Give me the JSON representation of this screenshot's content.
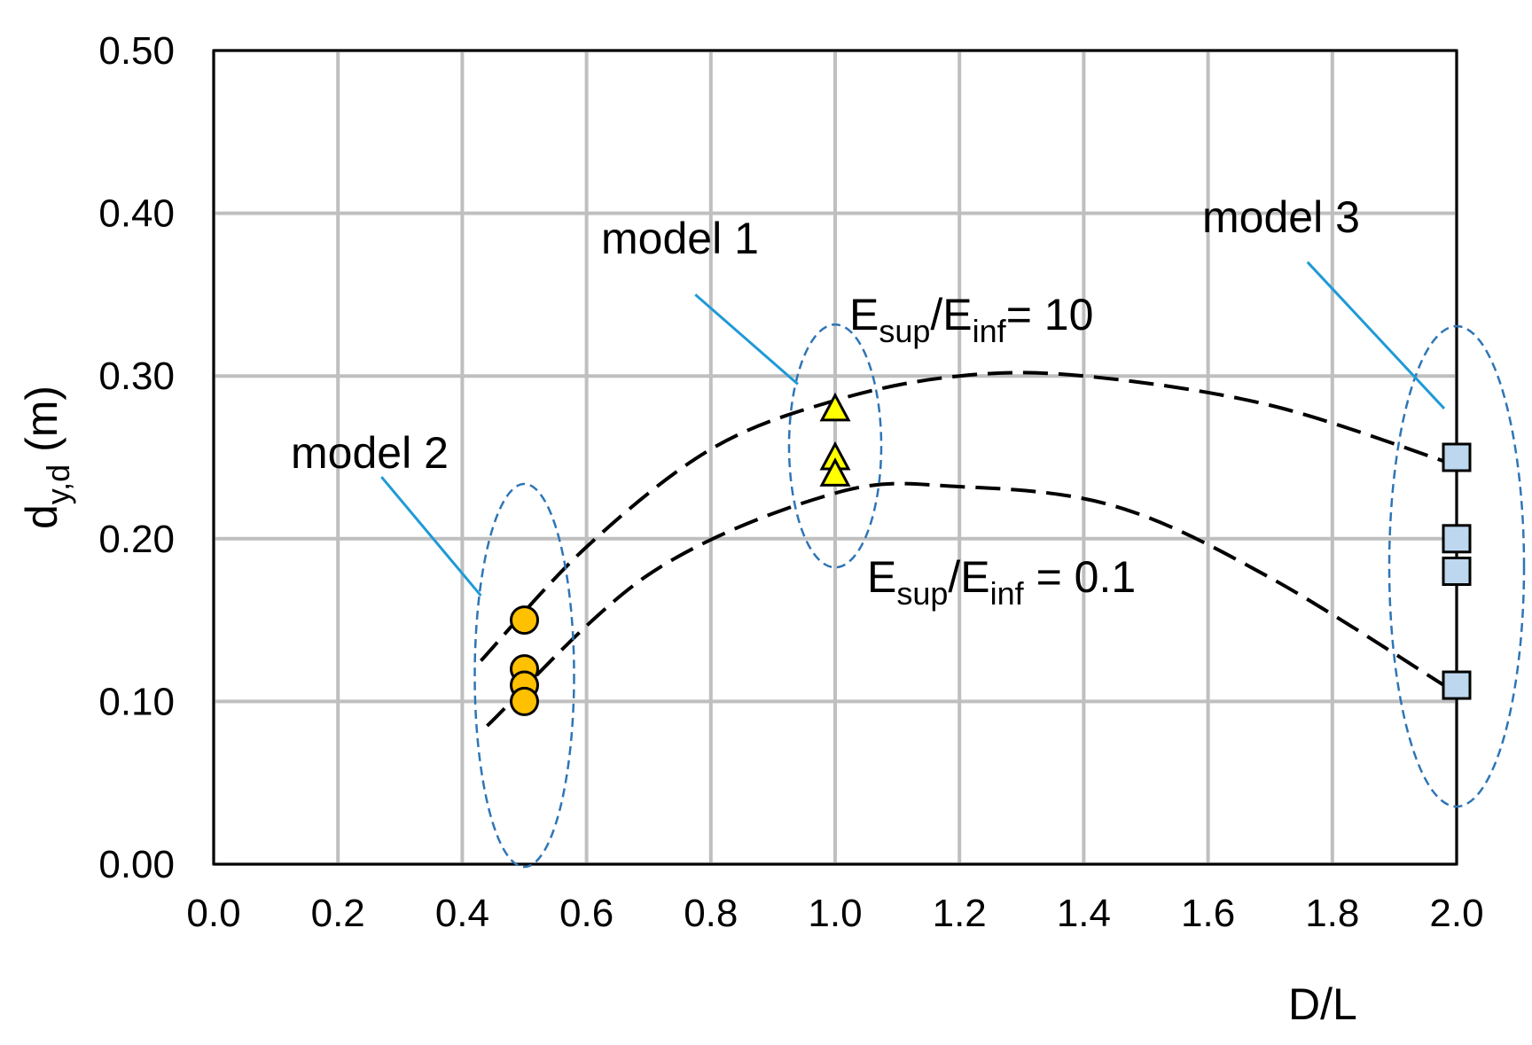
{
  "chart_data": {
    "type": "scatter",
    "xlabel": "D/L",
    "ylabel": {
      "main": "d",
      "sub": "y,d",
      "unit": " (m)"
    },
    "xlim": [
      0,
      2.0
    ],
    "ylim": [
      0,
      0.5
    ],
    "x_ticks": [
      "0.0",
      "0.2",
      "0.4",
      "0.6",
      "0.8",
      "1.0",
      "1.2",
      "1.4",
      "1.6",
      "1.8",
      "2.0"
    ],
    "y_ticks": [
      "0.00",
      "0.10",
      "0.20",
      "0.30",
      "0.40",
      "0.50"
    ],
    "grid": true,
    "colors": {
      "grid": "#bfbfbf",
      "model1": "#ffff00",
      "model2": "#ffc000",
      "model3": "#bdd7ee",
      "ellipse": "#2e75b6",
      "leader": "#1f9ad6",
      "trend": "#000000"
    },
    "series": [
      {
        "name": "model 1",
        "marker": "triangle",
        "points": [
          [
            1.0,
            0.28
          ],
          [
            1.0,
            0.25
          ],
          [
            1.0,
            0.24
          ]
        ]
      },
      {
        "name": "model 2",
        "marker": "circle",
        "points": [
          [
            0.5,
            0.15
          ],
          [
            0.5,
            0.12
          ],
          [
            0.5,
            0.11
          ],
          [
            0.5,
            0.1
          ]
        ]
      },
      {
        "name": "model 3",
        "marker": "square",
        "points": [
          [
            2.0,
            0.25
          ],
          [
            2.0,
            0.2
          ],
          [
            2.0,
            0.18
          ],
          [
            2.0,
            0.11
          ]
        ]
      }
    ],
    "trend_lines": [
      {
        "label": {
          "main": "E",
          "sub1": "sup",
          "mid": "/E",
          "sub2": "inf",
          "tail": "= 10"
        },
        "points": [
          [
            0.43,
            0.125
          ],
          [
            0.6,
            0.195
          ],
          [
            0.8,
            0.255
          ],
          [
            1.0,
            0.285
          ],
          [
            1.2,
            0.3
          ],
          [
            1.4,
            0.3
          ],
          [
            1.7,
            0.282
          ],
          [
            2.0,
            0.245
          ]
        ]
      },
      {
        "label": {
          "main": "E",
          "sub1": "sup",
          "mid": "/E",
          "sub2": "inf",
          "tail": " = 0.1"
        },
        "points": [
          [
            0.44,
            0.085
          ],
          [
            0.7,
            0.178
          ],
          [
            1.0,
            0.228
          ],
          [
            1.2,
            0.232
          ],
          [
            1.45,
            0.22
          ],
          [
            1.7,
            0.176
          ],
          [
            2.0,
            0.105
          ]
        ]
      }
    ],
    "annotations": [
      {
        "text": "model 1"
      },
      {
        "text": "model 2"
      },
      {
        "text": "model 3"
      }
    ]
  }
}
